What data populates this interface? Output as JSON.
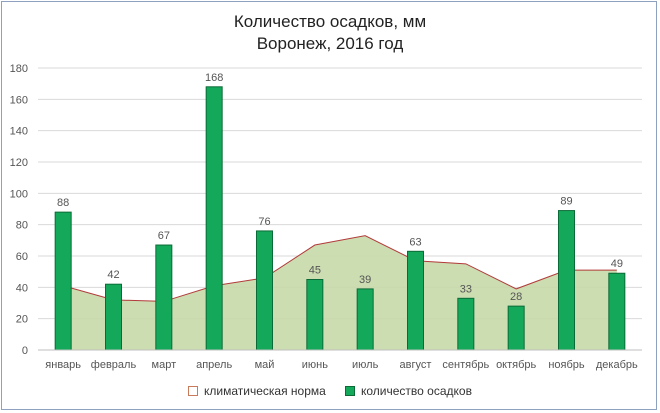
{
  "title": "Количество осадков, мм",
  "subtitle": "Воронеж, 2016 год",
  "colors": {
    "bar_fill": "#14a85a",
    "bar_stroke": "#0b6b36",
    "area_fill": "#c6d9a8",
    "area_line": "#b23a3a",
    "grid": "#d9d9d9",
    "label": "#555555"
  },
  "legend": {
    "norm_label": "климатическая норма",
    "precip_label": "количество осадков"
  },
  "chart_data": {
    "type": "bar",
    "title": "Количество осадков, мм",
    "subtitle": "Воронеж, 2016 год",
    "xlabel": "",
    "ylabel": "",
    "ylim": [
      0,
      180
    ],
    "yticks": [
      0,
      20,
      40,
      60,
      80,
      100,
      120,
      140,
      160,
      180
    ],
    "grid": true,
    "legend_position": "bottom",
    "categories": [
      "январь",
      "февраль",
      "март",
      "апрель",
      "май",
      "июнь",
      "июль",
      "август",
      "сентябрь",
      "октябрь",
      "ноябрь",
      "декабрь"
    ],
    "series": [
      {
        "name": "климатическая норма",
        "type": "area",
        "values": [
          41,
          32,
          31,
          41,
          46,
          67,
          73,
          57,
          55,
          39,
          51,
          51
        ]
      },
      {
        "name": "количество осадков",
        "type": "bar",
        "values": [
          88,
          42,
          67,
          168,
          76,
          45,
          39,
          63,
          33,
          28,
          89,
          49
        ],
        "data_labels": true
      }
    ]
  }
}
